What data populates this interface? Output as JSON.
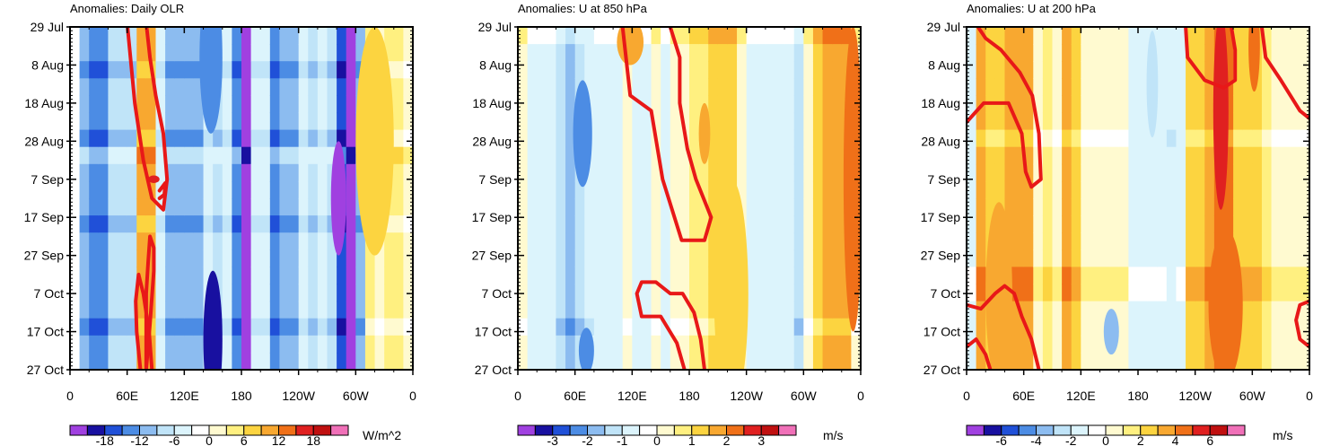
{
  "chart_data": [
    {
      "type": "heatmap",
      "title": "Anomalies: Daily OLR",
      "units": "W/m^2",
      "y_ticks": [
        "29 Jul",
        "8 Aug",
        "18 Aug",
        "28 Aug",
        "7 Sep",
        "17 Sep",
        "27 Sep",
        "7 Oct",
        "17 Oct",
        "27 Oct"
      ],
      "x_ticks": [
        "0",
        "60E",
        "120E",
        "180",
        "120W",
        "60W",
        "0"
      ],
      "colorbar_labels": [
        "-18",
        "-12",
        "-6",
        "0",
        "6",
        "12",
        "18"
      ],
      "colorbar_levels": [
        -21,
        -18,
        -15,
        -12,
        -9,
        -6,
        -3,
        0,
        3,
        6,
        9,
        12,
        15,
        18,
        21
      ],
      "longitude_band_levels": [
        0,
        -4,
        -5,
        -5,
        -3,
        -3,
        -3,
        4,
        4,
        -2,
        -4,
        -4,
        -4,
        -4,
        -2,
        -3,
        -2,
        -5,
        -8,
        -2,
        -2,
        -5,
        -4,
        -4,
        -2,
        -3,
        -2,
        -3,
        -6,
        -8,
        -4,
        2,
        1,
        2,
        2,
        1
      ],
      "time_band_levels": [
        0,
        0,
        -1,
        0,
        0,
        0,
        -1,
        1,
        0,
        0,
        0,
        -1,
        0,
        0,
        0,
        0,
        0,
        -1,
        0,
        0
      ],
      "blobs": [
        {
          "lon": 88,
          "day": 40,
          "lon_width": 6,
          "day_height": 1,
          "level": 6
        },
        {
          "lon": 148,
          "day": 8,
          "lon_width": 12,
          "day_height": 20,
          "level": -5
        },
        {
          "lon": 150,
          "day": 82,
          "lon_width": 10,
          "day_height": 18,
          "level": -7
        },
        {
          "lon": 282,
          "day": 45,
          "lon_width": 8,
          "day_height": 15,
          "level": -9
        },
        {
          "lon": 320,
          "day": 30,
          "lon_width": 20,
          "day_height": 30,
          "level": 3
        }
      ],
      "contours": [
        [
          [
            60,
            -1
          ],
          [
            68,
            20
          ],
          [
            77,
            35
          ],
          [
            86,
            45
          ],
          [
            98,
            48
          ],
          [
            102,
            40
          ],
          [
            98,
            28
          ],
          [
            90,
            18
          ],
          [
            84,
            8
          ],
          [
            80,
            -1
          ]
        ],
        [
          [
            94,
            43
          ],
          [
            100,
            41
          ],
          [
            99,
            44
          ],
          [
            94,
            45
          ]
        ],
        [
          [
            86,
            90
          ],
          [
            83,
            80
          ],
          [
            77,
            70
          ],
          [
            72,
            65
          ],
          [
            69,
            72
          ],
          [
            70,
            80
          ],
          [
            74,
            90
          ]
        ],
        [
          [
            80,
            90
          ],
          [
            84,
            78
          ],
          [
            88,
            64
          ],
          [
            88,
            58
          ],
          [
            84,
            55
          ],
          [
            82,
            62
          ],
          [
            80,
            70
          ],
          [
            80,
            90
          ]
        ]
      ]
    },
    {
      "type": "heatmap",
      "title": "Anomalies: U at 850 hPa",
      "units": "m/s",
      "y_ticks": [
        "29 Jul",
        "8 Aug",
        "18 Aug",
        "28 Aug",
        "7 Sep",
        "17 Sep",
        "27 Sep",
        "7 Oct",
        "17 Oct",
        "27 Oct"
      ],
      "x_ticks": [
        "0",
        "60E",
        "120E",
        "180",
        "120W",
        "60W",
        "0"
      ],
      "colorbar_labels": [
        "-3",
        "-2",
        "-1",
        "0",
        "1",
        "2",
        "3"
      ],
      "colorbar_levels": [
        -3.5,
        -3,
        -2.5,
        -2,
        -1.5,
        -1,
        -0.5,
        0,
        0.5,
        1,
        1.5,
        2,
        2.5,
        3,
        3.5
      ],
      "longitude_band_levels": [
        1,
        -1,
        -1,
        -1,
        -3,
        -4,
        -3,
        -2,
        -1,
        -1,
        -1,
        1,
        -1,
        -1,
        1,
        -1,
        1,
        1,
        2,
        2,
        3,
        3,
        3,
        1,
        -1,
        -1,
        -1,
        -1,
        -1,
        -3,
        1,
        3,
        4,
        4,
        4,
        1
      ],
      "time_band_levels": [
        1,
        0,
        0,
        0,
        0,
        0,
        0,
        0,
        0,
        0,
        0,
        0,
        0,
        0,
        0,
        0,
        0,
        -1,
        0,
        0
      ],
      "blobs": [
        {
          "lon": 118,
          "day": 4,
          "lon_width": 14,
          "day_height": 6,
          "level": 4
        },
        {
          "lon": 68,
          "day": 28,
          "lon_width": 10,
          "day_height": 14,
          "level": -5
        },
        {
          "lon": 72,
          "day": 85,
          "lon_width": 8,
          "day_height": 6,
          "level": -5
        },
        {
          "lon": 196,
          "day": 28,
          "lon_width": 6,
          "day_height": 8,
          "level": 4
        },
        {
          "lon": 224,
          "day": 70,
          "lon_width": 18,
          "day_height": 30,
          "level": 3
        },
        {
          "lon": 352,
          "day": 40,
          "lon_width": 10,
          "day_height": 40,
          "level": 5
        }
      ],
      "contours": [
        [
          [
            110,
            0
          ],
          [
            118,
            18
          ],
          [
            140,
            22
          ],
          [
            152,
            40
          ],
          [
            172,
            56
          ],
          [
            196,
            56
          ],
          [
            203,
            50
          ],
          [
            187,
            40
          ],
          [
            178,
            32
          ],
          [
            170,
            20
          ],
          [
            170,
            8
          ],
          [
            160,
            0
          ]
        ],
        [
          [
            196,
            90
          ],
          [
            192,
            82
          ],
          [
            185,
            75
          ],
          [
            173,
            70
          ],
          [
            160,
            70
          ],
          [
            145,
            67
          ],
          [
            130,
            67
          ],
          [
            125,
            70
          ],
          [
            130,
            76
          ],
          [
            150,
            76
          ],
          [
            167,
            83
          ],
          [
            175,
            90
          ]
        ]
      ]
    },
    {
      "type": "heatmap",
      "title": "Anomalies: U at 200 hPa",
      "units": "m/s",
      "y_ticks": [
        "29 Jul",
        "8 Aug",
        "18 Aug",
        "28 Aug",
        "7 Sep",
        "17 Sep",
        "27 Sep",
        "7 Oct",
        "17 Oct",
        "27 Oct"
      ],
      "x_ticks": [
        "0",
        "60E",
        "120E",
        "180",
        "120W",
        "60W",
        "0"
      ],
      "colorbar_labels": [
        "-6",
        "-4",
        "-2",
        "0",
        "2",
        "4",
        "6"
      ],
      "colorbar_levels": [
        -7,
        -6,
        -5,
        -4,
        -3,
        -2,
        -1,
        0,
        1,
        2,
        3,
        4,
        5,
        6,
        7
      ],
      "longitude_band_levels": [
        -1,
        4,
        3,
        3,
        4,
        4,
        4,
        1,
        2,
        1,
        4,
        3,
        1,
        1,
        1,
        1,
        1,
        -1,
        -1,
        -1,
        -1,
        -2,
        -1,
        3,
        3,
        4,
        5,
        5,
        3,
        3,
        3,
        2,
        1,
        1,
        1,
        1
      ],
      "time_band_levels": [
        0,
        0,
        0,
        0,
        0,
        0,
        -1,
        0,
        0,
        0,
        0,
        0,
        0,
        0,
        1,
        1,
        0,
        0,
        0,
        0
      ],
      "blobs": [
        {
          "lon": 34,
          "day": 70,
          "lon_width": 14,
          "day_height": 24,
          "level": 4
        },
        {
          "lon": 152,
          "day": 80,
          "lon_width": 8,
          "day_height": 6,
          "level": -4
        },
        {
          "lon": 267,
          "day": 22,
          "lon_width": 8,
          "day_height": 26,
          "level": 6
        },
        {
          "lon": 272,
          "day": 73,
          "lon_width": 18,
          "day_height": 20,
          "level": 5
        },
        {
          "lon": 302,
          "day": 5,
          "lon_width": 6,
          "day_height": 12,
          "level": 5
        },
        {
          "lon": 195,
          "day": 15,
          "lon_width": 6,
          "day_height": 14,
          "level": -3
        }
      ],
      "contours": [
        [
          [
            12,
            0
          ],
          [
            20,
            3
          ],
          [
            36,
            6
          ],
          [
            56,
            12
          ],
          [
            69,
            18
          ],
          [
            76,
            28
          ],
          [
            78,
            40
          ],
          [
            68,
            42
          ],
          [
            62,
            38
          ],
          [
            58,
            28
          ],
          [
            44,
            20
          ],
          [
            30,
            20
          ],
          [
            18,
            20
          ],
          [
            0,
            25
          ]
        ],
        [
          [
            230,
            0
          ],
          [
            232,
            8
          ],
          [
            250,
            14
          ],
          [
            270,
            16
          ],
          [
            282,
            14
          ],
          [
            282,
            6
          ],
          [
            278,
            0
          ]
        ],
        [
          [
            310,
            0
          ],
          [
            314,
            8
          ],
          [
            330,
            14
          ],
          [
            350,
            22
          ],
          [
            360,
            24
          ]
        ],
        [
          [
            0,
            73
          ],
          [
            15,
            74
          ],
          [
            30,
            70
          ],
          [
            40,
            68
          ],
          [
            50,
            70
          ],
          [
            58,
            76
          ],
          [
            68,
            82
          ],
          [
            76,
            90
          ]
        ],
        [
          [
            0,
            84
          ],
          [
            10,
            82
          ],
          [
            20,
            86
          ],
          [
            25,
            90
          ]
        ],
        [
          [
            360,
            72
          ],
          [
            350,
            73
          ],
          [
            346,
            77
          ],
          [
            350,
            82
          ],
          [
            360,
            84
          ]
        ]
      ]
    }
  ]
}
